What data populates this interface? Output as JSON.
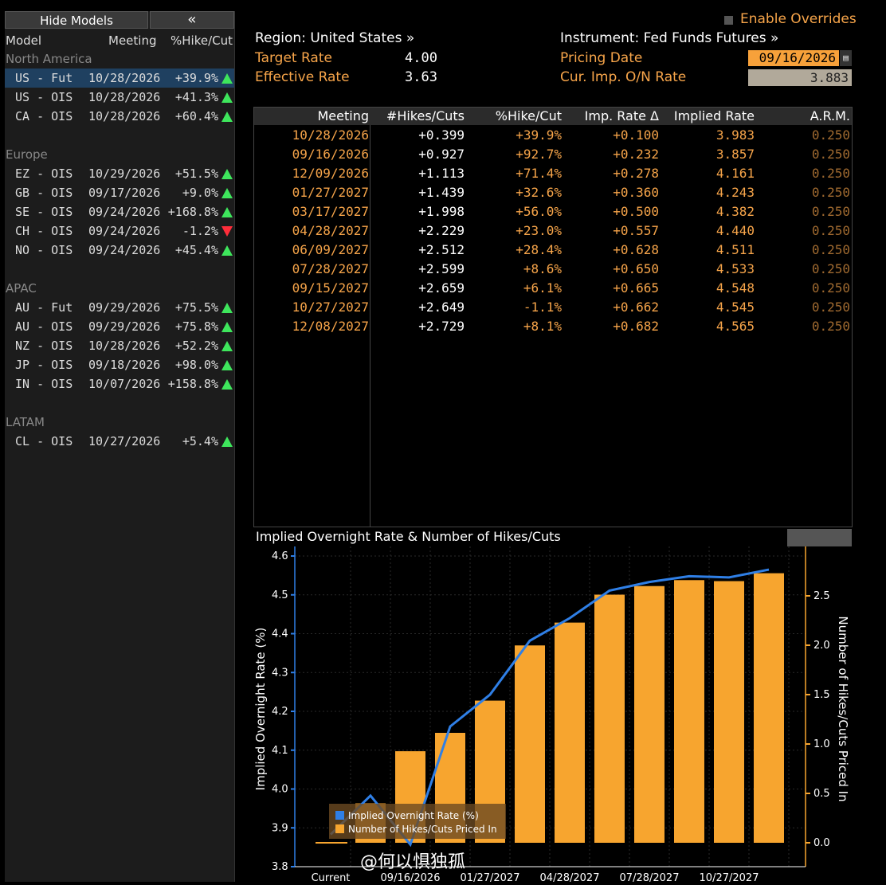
{
  "left_panel": {
    "hide_label": "Hide Models",
    "collapse_label": "«",
    "headers": {
      "model": "Model",
      "meeting": "Meeting",
      "pct": "%Hike/Cut"
    },
    "groups": [
      {
        "name": "North America",
        "rows": [
          {
            "model": "US - Fut",
            "meeting": "10/28/2026",
            "pct": "+39.9%",
            "dir": "up",
            "selected": true
          },
          {
            "model": "US - OIS",
            "meeting": "10/28/2026",
            "pct": "+41.3%",
            "dir": "up"
          },
          {
            "model": "CA - OIS",
            "meeting": "10/28/2026",
            "pct": "+60.4%",
            "dir": "up"
          }
        ]
      },
      {
        "name": "Europe",
        "rows": [
          {
            "model": "EZ - OIS",
            "meeting": "10/29/2026",
            "pct": "+51.5%",
            "dir": "up"
          },
          {
            "model": "GB - OIS",
            "meeting": "09/17/2026",
            "pct": "+9.0%",
            "dir": "up"
          },
          {
            "model": "SE - OIS",
            "meeting": "09/24/2026",
            "pct": "+168.8%",
            "dir": "up"
          },
          {
            "model": "CH - OIS",
            "meeting": "09/24/2026",
            "pct": "-1.2%",
            "dir": "down"
          },
          {
            "model": "NO - OIS",
            "meeting": "09/24/2026",
            "pct": "+45.4%",
            "dir": "up"
          }
        ]
      },
      {
        "name": "APAC",
        "rows": [
          {
            "model": "AU - Fut",
            "meeting": "09/29/2026",
            "pct": "+75.5%",
            "dir": "up"
          },
          {
            "model": "AU - OIS",
            "meeting": "09/29/2026",
            "pct": "+75.8%",
            "dir": "up"
          },
          {
            "model": "NZ - OIS",
            "meeting": "10/28/2026",
            "pct": "+52.2%",
            "dir": "up"
          },
          {
            "model": "JP - OIS",
            "meeting": "09/18/2026",
            "pct": "+98.0%",
            "dir": "up"
          },
          {
            "model": "IN - OIS",
            "meeting": "10/07/2026",
            "pct": "+158.8%",
            "dir": "up"
          }
        ]
      },
      {
        "name": "LATAM",
        "rows": [
          {
            "model": "CL - OIS",
            "meeting": "10/27/2026",
            "pct": "+5.4%",
            "dir": "up"
          }
        ]
      }
    ]
  },
  "header": {
    "enable_overrides": "Enable Overrides",
    "region": "Region: United States »",
    "instrument": "Instrument: Fed Funds Futures »",
    "target_rate_label": "Target Rate",
    "target_rate": "4.00",
    "effective_rate_label": "Effective Rate",
    "effective_rate": "3.63",
    "pricing_date_label": "Pricing Date",
    "pricing_date": "09/16/2026",
    "on_rate_label": "Cur. Imp. O/N Rate",
    "on_rate": "3.883"
  },
  "table": {
    "columns": [
      "Meeting",
      "#Hikes/Cuts",
      "%Hike/Cut",
      "Imp. Rate Δ",
      "Implied Rate",
      "A.R.M."
    ],
    "rows": [
      [
        "10/28/2026",
        "+0.399",
        "+39.9%",
        "+0.100",
        "3.983",
        "0.250"
      ],
      [
        "09/16/2026",
        "+0.927",
        "+92.7%",
        "+0.232",
        "3.857",
        "0.250"
      ],
      [
        "12/09/2026",
        "+1.113",
        "+71.4%",
        "+0.278",
        "4.161",
        "0.250"
      ],
      [
        "01/27/2027",
        "+1.439",
        "+32.6%",
        "+0.360",
        "4.243",
        "0.250"
      ],
      [
        "03/17/2027",
        "+1.998",
        "+56.0%",
        "+0.500",
        "4.382",
        "0.250"
      ],
      [
        "04/28/2027",
        "+2.229",
        "+23.0%",
        "+0.557",
        "4.440",
        "0.250"
      ],
      [
        "06/09/2027",
        "+2.512",
        "+28.4%",
        "+0.628",
        "4.511",
        "0.250"
      ],
      [
        "07/28/2027",
        "+2.599",
        "+8.6%",
        "+0.650",
        "4.533",
        "0.250"
      ],
      [
        "09/15/2027",
        "+2.659",
        "+6.1%",
        "+0.665",
        "4.548",
        "0.250"
      ],
      [
        "10/27/2027",
        "+2.649",
        "-1.1%",
        "+0.662",
        "4.545",
        "0.250"
      ],
      [
        "12/08/2027",
        "+2.729",
        "+8.1%",
        "+0.682",
        "4.565",
        "0.250"
      ]
    ]
  },
  "chart": {
    "title": "Implied Overnight Rate & Number of Hikes/Cuts",
    "watermark": "@何以惧独孤",
    "colors": {
      "line": "#2f7fe6",
      "bar": "#f7a52f",
      "axis": "#f7a52f"
    }
  },
  "chart_data": {
    "type": "bar",
    "categories": [
      "Current",
      "10/28/2026",
      "09/16/2026",
      "12/09/2026",
      "01/27/2027",
      "03/17/2027",
      "04/28/2027",
      "06/09/2027",
      "07/28/2027",
      "09/15/2027",
      "10/27/2027",
      "12/08/2027"
    ],
    "x_tick_labels": [
      "Current",
      "09/16/2026",
      "01/27/2027",
      "04/28/2027",
      "07/28/2027",
      "10/27/2027"
    ],
    "series": [
      {
        "name": "Implied Overnight Rate (%)",
        "type": "line",
        "axis": "left",
        "values": [
          3.883,
          3.983,
          3.857,
          4.161,
          4.243,
          4.382,
          4.44,
          4.511,
          4.533,
          4.548,
          4.545,
          4.565
        ]
      },
      {
        "name": "Number of Hikes/Cuts Priced In",
        "type": "bar",
        "axis": "right",
        "values": [
          0,
          0.399,
          0.927,
          1.113,
          1.439,
          1.998,
          2.229,
          2.512,
          2.599,
          2.659,
          2.649,
          2.729
        ]
      }
    ],
    "ylabel": "Implied Overnight Rate (%)",
    "ylabel_right": "Number of Hikes/Cuts Priced In",
    "ylim": [
      3.8,
      4.6
    ],
    "ylim_right": [
      0,
      2.75
    ],
    "yticks": [
      "3.8",
      "3.9",
      "4.0",
      "4.1",
      "4.2",
      "4.3",
      "4.4",
      "4.5",
      "4.6"
    ],
    "yticks_right": [
      "0.0",
      "0.5",
      "1.0",
      "1.5",
      "2.0",
      "2.5"
    ],
    "grid": true,
    "legend": "bottom-left"
  }
}
